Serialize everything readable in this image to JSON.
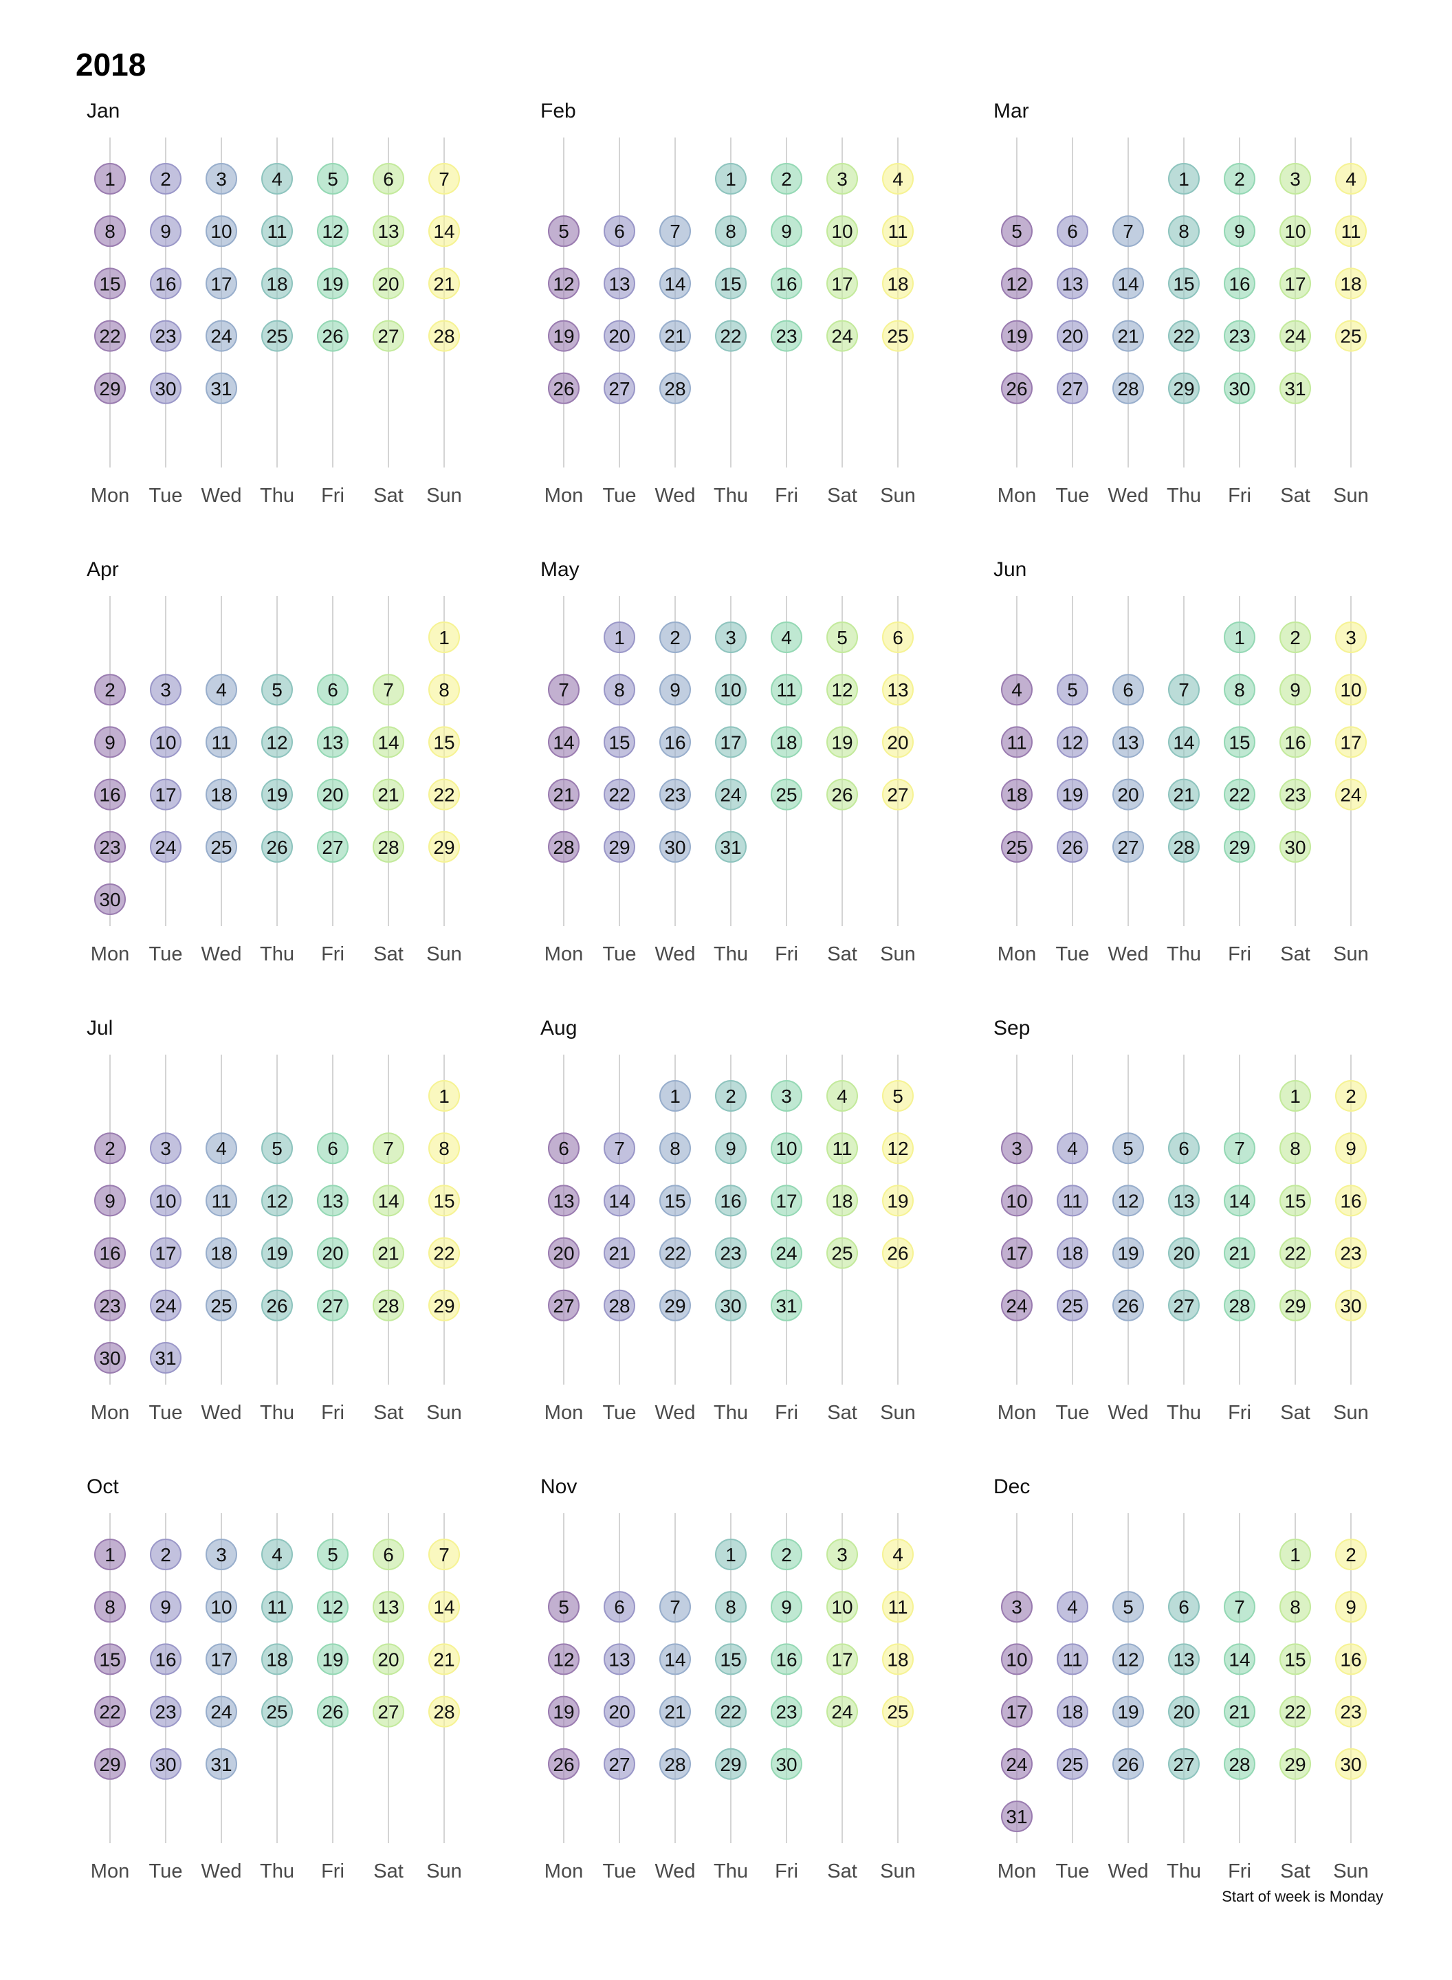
{
  "chart_data": {
    "type": "calendar",
    "title": "2018",
    "caption": "Start of week is Monday",
    "weekdays": [
      "Mon",
      "Tue",
      "Wed",
      "Thu",
      "Fri",
      "Sat",
      "Sun"
    ],
    "weekday_colors": [
      "#9a7cb0",
      "#9a97c8",
      "#98aecc",
      "#8ec4be",
      "#94d8b4",
      "#c3ea9c",
      "#f6f394"
    ],
    "months": [
      {
        "name": "Jan",
        "days": 31,
        "first_weekday": "Mon"
      },
      {
        "name": "Feb",
        "days": 28,
        "first_weekday": "Thu"
      },
      {
        "name": "Mar",
        "days": 31,
        "first_weekday": "Thu"
      },
      {
        "name": "Apr",
        "days": 30,
        "first_weekday": "Sun"
      },
      {
        "name": "May",
        "days": 31,
        "first_weekday": "Tue"
      },
      {
        "name": "Jun",
        "days": 30,
        "first_weekday": "Fri"
      },
      {
        "name": "Jul",
        "days": 31,
        "first_weekday": "Sun"
      },
      {
        "name": "Aug",
        "days": 31,
        "first_weekday": "Wed"
      },
      {
        "name": "Sep",
        "days": 30,
        "first_weekday": "Sat"
      },
      {
        "name": "Oct",
        "days": 31,
        "first_weekday": "Mon"
      },
      {
        "name": "Nov",
        "days": 30,
        "first_weekday": "Thu"
      },
      {
        "name": "Dec",
        "days": 31,
        "first_weekday": "Sat"
      }
    ]
  }
}
